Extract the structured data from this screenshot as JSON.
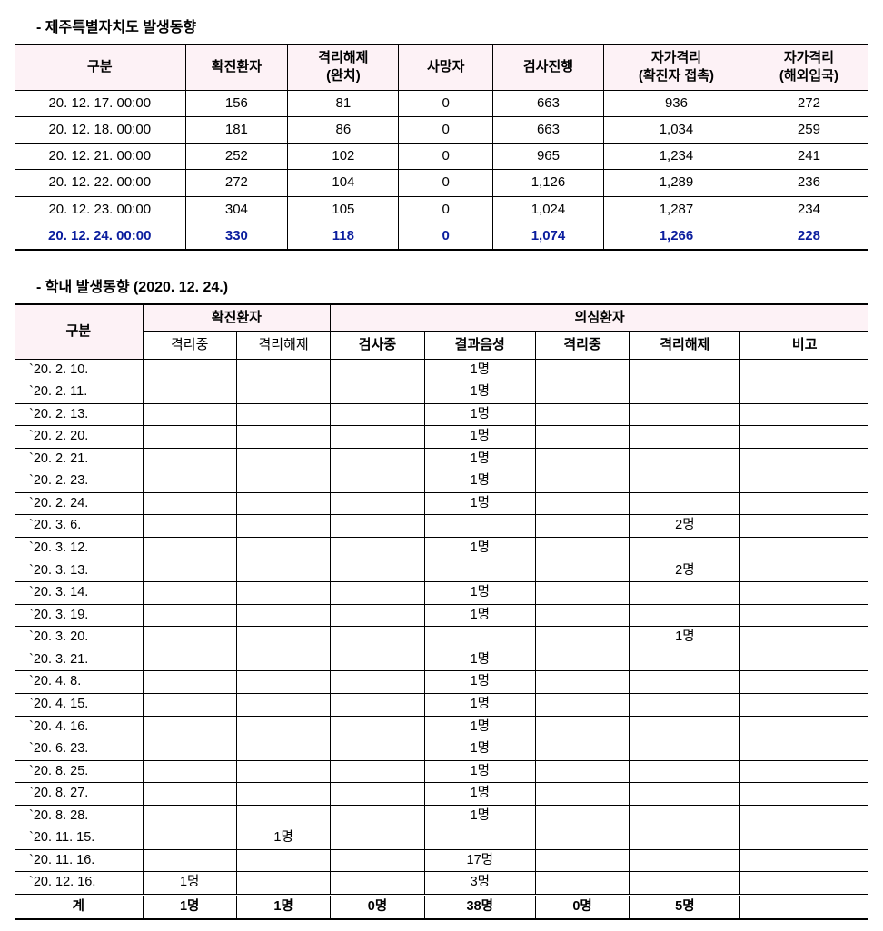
{
  "section1": {
    "title": "- 제주특별자치도 발생동향",
    "columns": [
      "구분",
      "확진환자",
      "격리해제\n(완치)",
      "사망자",
      "검사진행",
      "자가격리\n(확진자 접촉)",
      "자가격리\n(해외입국)"
    ],
    "col_widths_pct": [
      20,
      12,
      13,
      11,
      13,
      17,
      14
    ],
    "rows": [
      {
        "cells": [
          "20. 12. 17. 00:00",
          "156",
          "81",
          "0",
          "663",
          "936",
          "272"
        ],
        "hl": false
      },
      {
        "cells": [
          "20. 12. 18. 00:00",
          "181",
          "86",
          "0",
          "663",
          "1,034",
          "259"
        ],
        "hl": false
      },
      {
        "cells": [
          "20. 12. 21. 00:00",
          "252",
          "102",
          "0",
          "965",
          "1,234",
          "241"
        ],
        "hl": false
      },
      {
        "cells": [
          "20. 12. 22. 00:00",
          "272",
          "104",
          "0",
          "1,126",
          "1,289",
          "236"
        ],
        "hl": false
      },
      {
        "cells": [
          "20. 12. 23. 00:00",
          "304",
          "105",
          "0",
          "1,024",
          "1,287",
          "234"
        ],
        "hl": false
      },
      {
        "cells": [
          "20. 12. 24. 00:00",
          "330",
          "118",
          "0",
          "1,074",
          "1,266",
          "228"
        ],
        "hl": true
      }
    ],
    "header_bg": "#fdf2f6",
    "highlight_color": "#0b1e9e"
  },
  "section2": {
    "title": "- 학내 발생동향 (2020. 12. 24.)",
    "top_headers": {
      "gubun": "구분",
      "confirmed": "확진환자",
      "suspect": "의심환자"
    },
    "sub_headers": [
      "격리중",
      "격리해제",
      "검사중",
      "결과음성",
      "격리중",
      "격리해제",
      "비고"
    ],
    "sub_bold": [
      false,
      false,
      true,
      true,
      true,
      true,
      true
    ],
    "col_widths_pct": [
      15,
      11,
      11,
      11,
      13,
      11,
      13,
      15
    ],
    "rows": [
      {
        "d": "`20.  2.  10.",
        "c": [
          "",
          "",
          "",
          "1명",
          "",
          "",
          ""
        ]
      },
      {
        "d": "`20.  2.  11.",
        "c": [
          "",
          "",
          "",
          "1명",
          "",
          "",
          ""
        ]
      },
      {
        "d": "`20.  2.  13.",
        "c": [
          "",
          "",
          "",
          "1명",
          "",
          "",
          ""
        ]
      },
      {
        "d": "`20.  2.  20.",
        "c": [
          "",
          "",
          "",
          "1명",
          "",
          "",
          ""
        ]
      },
      {
        "d": "`20.  2.  21.",
        "c": [
          "",
          "",
          "",
          "1명",
          "",
          "",
          ""
        ]
      },
      {
        "d": "`20.  2.  23.",
        "c": [
          "",
          "",
          "",
          "1명",
          "",
          "",
          ""
        ]
      },
      {
        "d": "`20.  2.  24.",
        "c": [
          "",
          "",
          "",
          "1명",
          "",
          "",
          ""
        ]
      },
      {
        "d": "`20.  3.    6.",
        "c": [
          "",
          "",
          "",
          "",
          "",
          "2명",
          ""
        ]
      },
      {
        "d": "`20.  3.  12.",
        "c": [
          "",
          "",
          "",
          "1명",
          "",
          "",
          ""
        ]
      },
      {
        "d": "`20.  3.  13.",
        "c": [
          "",
          "",
          "",
          "",
          "",
          "2명",
          ""
        ]
      },
      {
        "d": "`20.  3.  14.",
        "c": [
          "",
          "",
          "",
          "1명",
          "",
          "",
          ""
        ]
      },
      {
        "d": "`20.  3.  19.",
        "c": [
          "",
          "",
          "",
          "1명",
          "",
          "",
          ""
        ]
      },
      {
        "d": "`20.  3.  20.",
        "c": [
          "",
          "",
          "",
          "",
          "",
          "1명",
          ""
        ]
      },
      {
        "d": "`20.  3.  21.",
        "c": [
          "",
          "",
          "",
          "1명",
          "",
          "",
          ""
        ]
      },
      {
        "d": "`20.  4.    8.",
        "c": [
          "",
          "",
          "",
          "1명",
          "",
          "",
          ""
        ]
      },
      {
        "d": "`20.  4.  15.",
        "c": [
          "",
          "",
          "",
          "1명",
          "",
          "",
          ""
        ]
      },
      {
        "d": "`20.  4.  16.",
        "c": [
          "",
          "",
          "",
          "1명",
          "",
          "",
          ""
        ]
      },
      {
        "d": "`20.  6.  23.",
        "c": [
          "",
          "",
          "",
          "1명",
          "",
          "",
          ""
        ]
      },
      {
        "d": "`20.  8.  25.",
        "c": [
          "",
          "",
          "",
          "1명",
          "",
          "",
          ""
        ]
      },
      {
        "d": "`20.  8.  27.",
        "c": [
          "",
          "",
          "",
          "1명",
          "",
          "",
          ""
        ]
      },
      {
        "d": "`20.  8.  28.",
        "c": [
          "",
          "",
          "",
          "1명",
          "",
          "",
          ""
        ]
      },
      {
        "d": "`20. 11.  15.",
        "c": [
          "",
          "1명",
          "",
          "",
          "",
          "",
          ""
        ]
      },
      {
        "d": "`20. 11.  16.",
        "c": [
          "",
          "",
          "",
          "17명",
          "",
          "",
          ""
        ]
      },
      {
        "d": "`20. 12.  16.",
        "c": [
          "1명",
          "",
          "",
          "3명",
          "",
          "",
          ""
        ]
      }
    ],
    "total": {
      "label": "계",
      "c": [
        "1명",
        "1명",
        "0명",
        "38명",
        "0명",
        "5명",
        ""
      ]
    }
  }
}
